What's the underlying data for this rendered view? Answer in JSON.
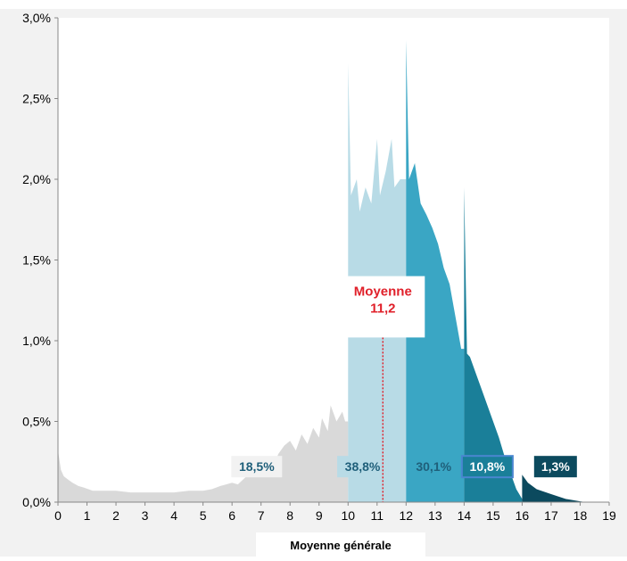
{
  "chart_data": {
    "type": "area",
    "xlabel": "Moyenne générale",
    "ylabel": "",
    "xlim": [
      0,
      19
    ],
    "ylim": [
      0,
      3.0
    ],
    "x_ticks": [
      0,
      1,
      2,
      3,
      4,
      5,
      6,
      7,
      8,
      9,
      10,
      11,
      12,
      13,
      14,
      15,
      16,
      17,
      18,
      19
    ],
    "y_ticks": [
      {
        "value": 0.0,
        "label": "0,0%"
      },
      {
        "value": 0.5,
        "label": "0,5%"
      },
      {
        "value": 1.0,
        "label": "1,0%"
      },
      {
        "value": 1.5,
        "label": "1,5%"
      },
      {
        "value": 2.0,
        "label": "2,0%"
      },
      {
        "value": 2.5,
        "label": "2,5%"
      },
      {
        "value": 3.0,
        "label": "3,0%"
      }
    ],
    "grid": false,
    "mean": {
      "value": 11.2,
      "label_line1": "Moyenne",
      "label_line2": "11,2",
      "color": "#e0202a"
    },
    "series": [
      {
        "range": [
          0,
          10
        ],
        "share_label": "18,5%",
        "color": "#d9d9d9",
        "label_text_color": "#1f5f7a",
        "label_box_color": "#f2f2f2",
        "points": [
          [
            0,
            0.32
          ],
          [
            0.1,
            0.2
          ],
          [
            0.2,
            0.16
          ],
          [
            0.35,
            0.14
          ],
          [
            0.5,
            0.12
          ],
          [
            0.7,
            0.1
          ],
          [
            0.9,
            0.09
          ],
          [
            1.2,
            0.07
          ],
          [
            1.5,
            0.07
          ],
          [
            2,
            0.07
          ],
          [
            2.5,
            0.06
          ],
          [
            3,
            0.06
          ],
          [
            3.5,
            0.06
          ],
          [
            4,
            0.06
          ],
          [
            4.5,
            0.07
          ],
          [
            5,
            0.07
          ],
          [
            5.3,
            0.08
          ],
          [
            5.6,
            0.1
          ],
          [
            6,
            0.12
          ],
          [
            6.2,
            0.11
          ],
          [
            6.5,
            0.16
          ],
          [
            6.8,
            0.18
          ],
          [
            7,
            0.2
          ],
          [
            7.2,
            0.25
          ],
          [
            7.4,
            0.22
          ],
          [
            7.6,
            0.3
          ],
          [
            7.8,
            0.35
          ],
          [
            8,
            0.38
          ],
          [
            8.2,
            0.32
          ],
          [
            8.4,
            0.42
          ],
          [
            8.6,
            0.36
          ],
          [
            8.8,
            0.46
          ],
          [
            9,
            0.4
          ],
          [
            9.1,
            0.52
          ],
          [
            9.3,
            0.44
          ],
          [
            9.4,
            0.6
          ],
          [
            9.6,
            0.5
          ],
          [
            9.8,
            0.56
          ],
          [
            9.9,
            0.5
          ],
          [
            10,
            0.5
          ]
        ]
      },
      {
        "range": [
          10,
          12
        ],
        "share_label": "38,8%",
        "color": "#b8dbe6",
        "label_text_color": "#1f5f7a",
        "label_box_color": "#b8dbe6",
        "points": [
          [
            10,
            2.72
          ],
          [
            10.1,
            1.9
          ],
          [
            10.3,
            2.0
          ],
          [
            10.4,
            1.8
          ],
          [
            10.6,
            1.95
          ],
          [
            10.8,
            1.85
          ],
          [
            11,
            2.25
          ],
          [
            11.1,
            1.9
          ],
          [
            11.3,
            2.05
          ],
          [
            11.5,
            2.25
          ],
          [
            11.6,
            1.95
          ],
          [
            11.8,
            2.0
          ],
          [
            12,
            2.0
          ]
        ]
      },
      {
        "range": [
          12,
          14
        ],
        "share_label": "30,1%",
        "color": "#3aa6c4",
        "label_text_color": "#1f5f7a",
        "label_box_color": "#3aa6c4",
        "points": [
          [
            12,
            2.86
          ],
          [
            12.1,
            2.0
          ],
          [
            12.3,
            2.1
          ],
          [
            12.5,
            1.85
          ],
          [
            12.7,
            1.78
          ],
          [
            12.9,
            1.7
          ],
          [
            13.1,
            1.6
          ],
          [
            13.3,
            1.45
          ],
          [
            13.5,
            1.35
          ],
          [
            13.7,
            1.15
          ],
          [
            13.9,
            0.95
          ],
          [
            14,
            0.95
          ]
        ]
      },
      {
        "range": [
          14,
          16
        ],
        "share_label": "10,8%",
        "color": "#1a7f99",
        "label_text_color": "#ffffff",
        "label_box_color": "#1a7f99",
        "label_border_color": "#4a86d0",
        "points": [
          [
            14,
            1.95
          ],
          [
            14.1,
            0.92
          ],
          [
            14.2,
            0.9
          ],
          [
            14.4,
            0.8
          ],
          [
            14.6,
            0.7
          ],
          [
            14.8,
            0.6
          ],
          [
            15,
            0.5
          ],
          [
            15.2,
            0.4
          ],
          [
            15.4,
            0.28
          ],
          [
            15.6,
            0.18
          ],
          [
            15.8,
            0.08
          ],
          [
            16,
            0.02
          ]
        ]
      },
      {
        "range": [
          16,
          19
        ],
        "share_label": "1,3%",
        "color": "#0c4a5e",
        "label_text_color": "#ffffff",
        "label_box_color": "#0c4a5e",
        "points": [
          [
            16,
            0.17
          ],
          [
            16.2,
            0.12
          ],
          [
            16.5,
            0.08
          ],
          [
            17,
            0.05
          ],
          [
            17.5,
            0.02
          ],
          [
            18,
            0.005
          ],
          [
            18.2,
            0.0
          ]
        ]
      }
    ]
  }
}
